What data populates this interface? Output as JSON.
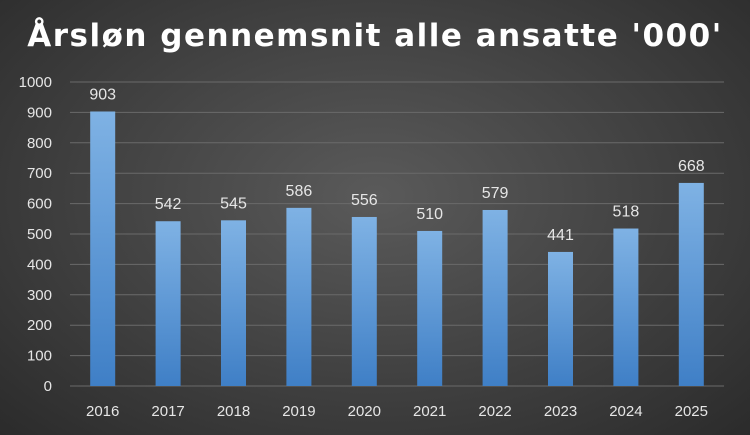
{
  "colors": {
    "bar_top": "#7fb2e4",
    "bar_bottom": "#3f7fc6"
  },
  "chart_data": {
    "type": "bar",
    "title": "Årsløn gennemsnit alle ansatte '000'",
    "xlabel": "",
    "ylabel": "",
    "categories": [
      "2016",
      "2017",
      "2018",
      "2019",
      "2020",
      "2021",
      "2022",
      "2023",
      "2024",
      "2025"
    ],
    "values": [
      903,
      542,
      545,
      586,
      556,
      510,
      579,
      441,
      518,
      668
    ],
    "data_labels": [
      "903",
      "542",
      "545",
      "586",
      "556",
      "510",
      "579",
      "441",
      "518",
      "668"
    ],
    "ylim": [
      0,
      1000
    ],
    "yticks": [
      0,
      100,
      200,
      300,
      400,
      500,
      600,
      700,
      800,
      900,
      1000
    ],
    "grid": true,
    "legend": "none"
  }
}
